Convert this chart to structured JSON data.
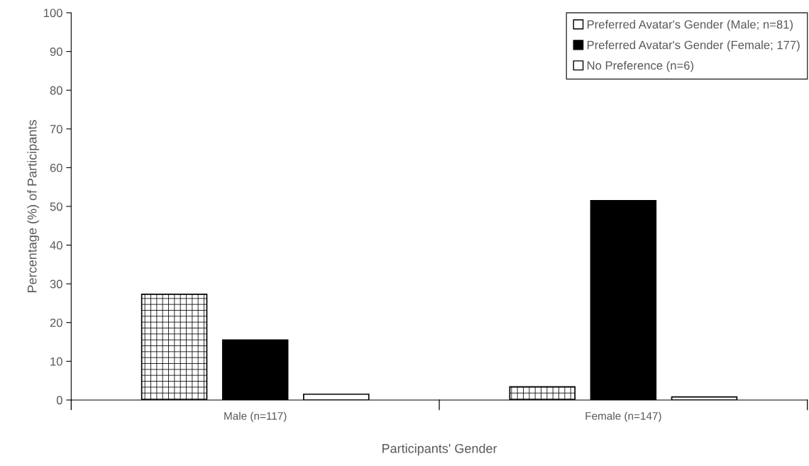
{
  "chart_data": {
    "type": "bar",
    "xlabel": "Participants' Gender",
    "ylabel": "Percentage (%) of Participants",
    "categories": [
      "Male (n=117)",
      "Female (n=147)"
    ],
    "series": [
      {
        "name": "Preferred Avatar's Gender (Male; n=81)",
        "color": "#ffffff",
        "values": [
          27.3,
          3.4
        ]
      },
      {
        "name": "Preferred Avatar's Gender (Female; 177)",
        "color": "#000000",
        "values": [
          15.5,
          51.5
        ]
      },
      {
        "name": "No Preference (n=6)",
        "color": "#ffffff",
        "values": [
          1.5,
          0.8
        ]
      }
    ],
    "ylim": [
      0,
      100
    ],
    "yticks": [
      0,
      10,
      20,
      30,
      40,
      50,
      60,
      70,
      80,
      90,
      100
    ],
    "grid": false,
    "legend": "top right"
  }
}
